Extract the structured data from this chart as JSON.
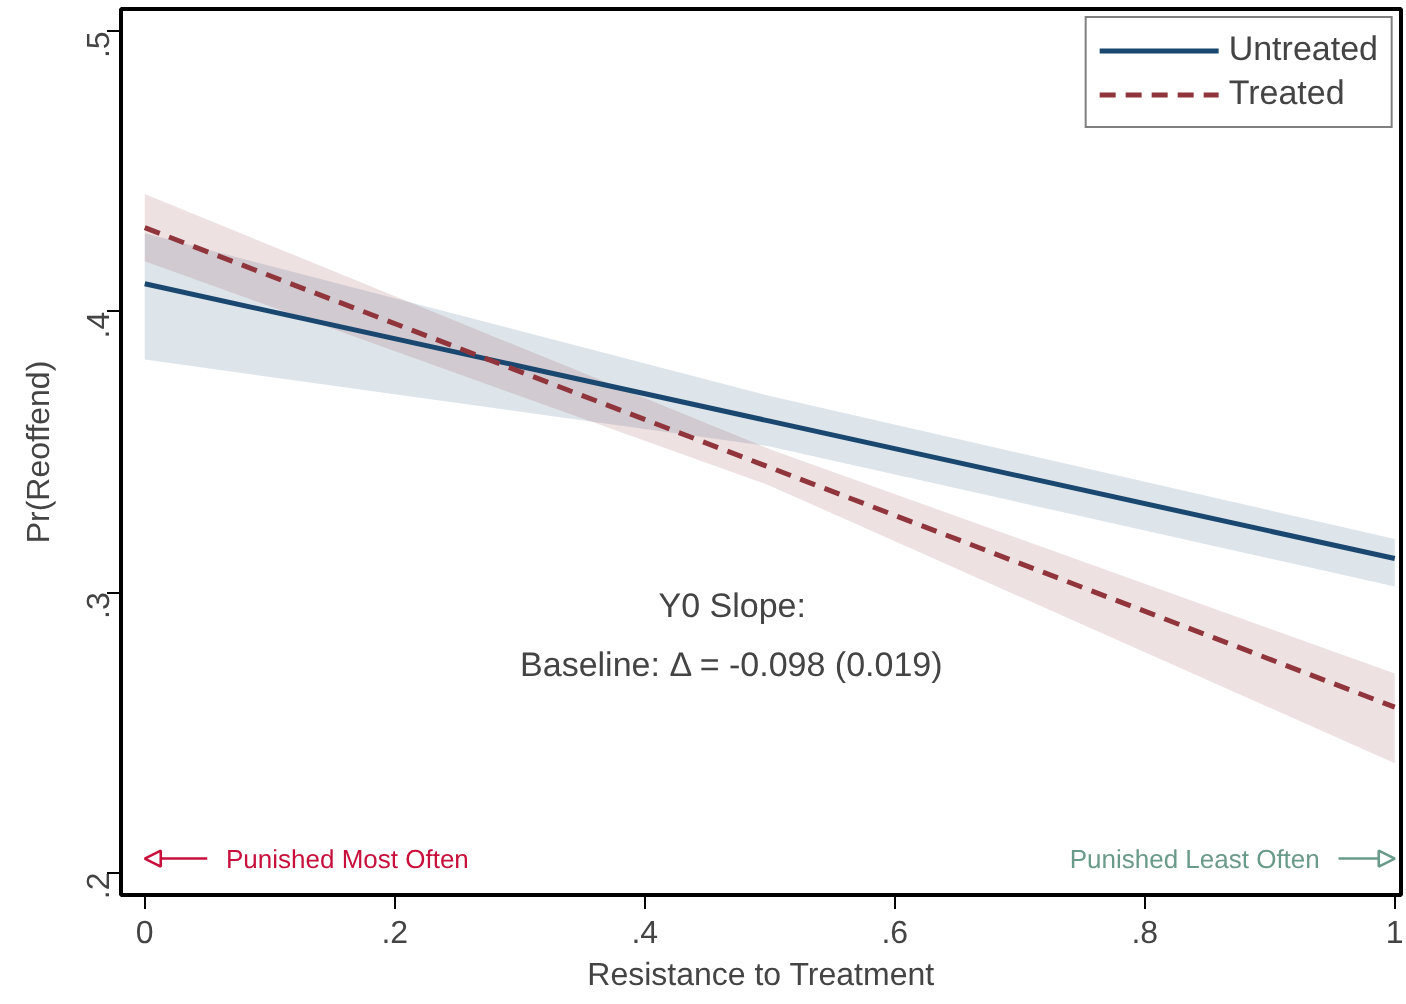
{
  "chart_data": {
    "type": "line",
    "xlabel": "Resistance to Treatment",
    "ylabel": "Pr(Reoffend)",
    "x": [
      0,
      0.5,
      1
    ],
    "series": [
      {
        "name": "Untreated",
        "color": "#1a476f",
        "values": [
          0.41,
          0.361,
          0.312
        ],
        "lower": [
          0.383,
          0.352,
          0.302
        ],
        "upper": [
          0.428,
          0.37,
          0.319
        ],
        "line_style": "solid"
      },
      {
        "name": "Treated",
        "color": "#90353b",
        "values": [
          0.43,
          0.3445,
          0.259
        ],
        "lower": [
          0.418,
          0.338,
          0.239
        ],
        "upper": [
          0.442,
          0.351,
          0.271
        ],
        "line_style": "dashed"
      }
    ],
    "xlim": [
      -0.019,
      1.005
    ],
    "ylim": [
      0.192,
      0.508
    ],
    "xticks": [
      {
        "value": 0,
        "label": "0"
      },
      {
        "value": 0.2,
        "label": ".2"
      },
      {
        "value": 0.4,
        "label": ".4"
      },
      {
        "value": 0.6,
        "label": ".6"
      },
      {
        "value": 0.8,
        "label": ".8"
      },
      {
        "value": 1,
        "label": "1"
      }
    ],
    "yticks": [
      {
        "value": 0.2,
        "label": ".2"
      },
      {
        "value": 0.3,
        "label": ".3"
      },
      {
        "value": 0.4,
        "label": ".4"
      },
      {
        "value": 0.5,
        "label": ".5"
      }
    ],
    "annotations": [
      "Y0 Slope:",
      "Baseline: Δ = -0.098 (0.019)",
      "Punished Most Often",
      "Punished Least Often"
    ],
    "grid": false,
    "legend": "top right",
    "marker": "none"
  }
}
